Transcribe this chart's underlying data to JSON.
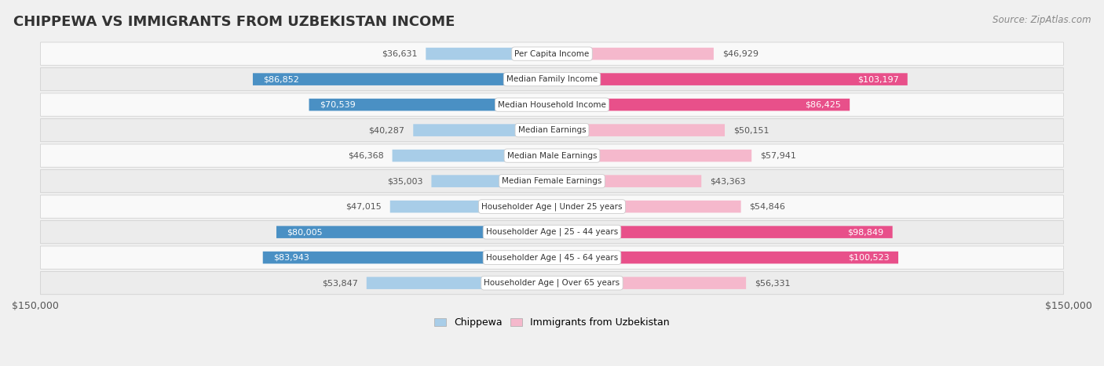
{
  "title": "CHIPPEWA VS IMMIGRANTS FROM UZBEKISTAN INCOME",
  "source": "Source: ZipAtlas.com",
  "categories": [
    "Per Capita Income",
    "Median Family Income",
    "Median Household Income",
    "Median Earnings",
    "Median Male Earnings",
    "Median Female Earnings",
    "Householder Age | Under 25 years",
    "Householder Age | 25 - 44 years",
    "Householder Age | 45 - 64 years",
    "Householder Age | Over 65 years"
  ],
  "chippewa_values": [
    36631,
    86852,
    70539,
    40287,
    46368,
    35003,
    47015,
    80005,
    83943,
    53847
  ],
  "uzbekistan_values": [
    46929,
    103197,
    86425,
    50151,
    57941,
    43363,
    54846,
    98849,
    100523,
    56331
  ],
  "chippewa_labels": [
    "$36,631",
    "$86,852",
    "$70,539",
    "$40,287",
    "$46,368",
    "$35,003",
    "$47,015",
    "$80,005",
    "$83,943",
    "$53,847"
  ],
  "uzbekistan_labels": [
    "$46,929",
    "$103,197",
    "$86,425",
    "$50,151",
    "$57,941",
    "$43,363",
    "$54,846",
    "$98,849",
    "$100,523",
    "$56,331"
  ],
  "chippewa_color_light": "#a8cde8",
  "chippewa_color_dark": "#4a90c4",
  "uzbekistan_color_light": "#f5b8cc",
  "uzbekistan_color_dark": "#e8508a",
  "max_value": 150000,
  "background_color": "#f0f0f0",
  "row_bg_light": "#f9f9f9",
  "row_bg_dark": "#ececec",
  "legend_chippewa": "Chippewa",
  "legend_uzbekistan": "Immigrants from Uzbekistan",
  "chippewa_dark_threshold": 70000,
  "uzbekistan_dark_threshold": 85000
}
